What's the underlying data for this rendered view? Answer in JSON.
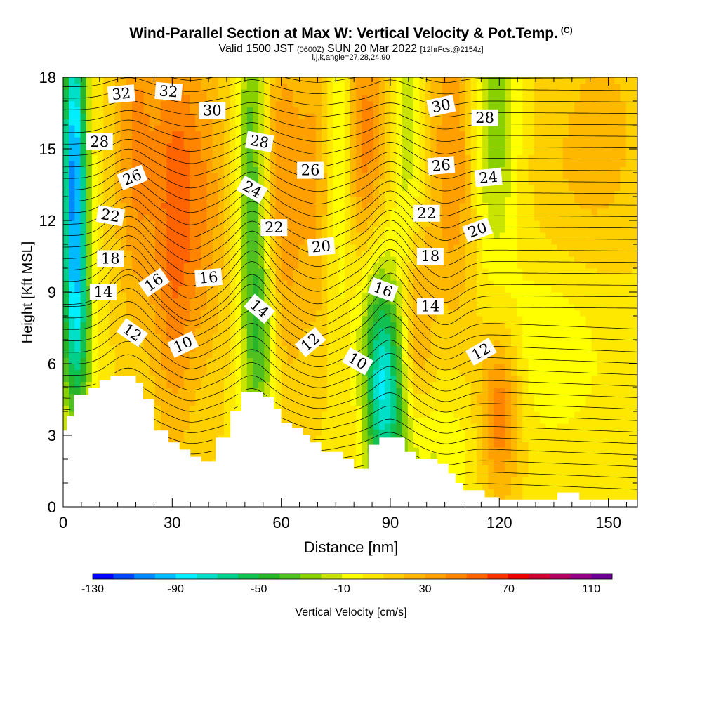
{
  "chart_data": {
    "type": "heatmap",
    "title": "Wind-Parallel Section at Max W: Vertical Velocity & Pot.Temp.",
    "title_mark": "(C)",
    "subtitle_main": "Valid 1500 JST",
    "subtitle_zulu": "(0600Z)",
    "subtitle_date": "SUN 20 Mar 2022",
    "subtitle_fcst": "[12hrFcst@2154z]",
    "subtitle2": "i,j,k,angle=27,28,24,90",
    "xlabel": "Distance [nm]",
    "ylabel": "Height [Kft MSL]",
    "xlim": [
      0,
      158
    ],
    "ylim": [
      0,
      18
    ],
    "x_ticks": [
      "0",
      "30",
      "60",
      "90",
      "120",
      "150"
    ],
    "y_ticks": [
      "0",
      "3",
      "6",
      "9",
      "12",
      "15",
      "18"
    ],
    "colorbar": {
      "label": "Vertical Velocity [cm/s]",
      "min": -130,
      "max": 120,
      "step": 10,
      "tick_labels": [
        "-130",
        "-90",
        "-50",
        "-10",
        "30",
        "70",
        "110"
      ],
      "colors": [
        "#0000ff",
        "#0044ff",
        "#0088ff",
        "#00bbff",
        "#00eeff",
        "#00e0c8",
        "#00d08c",
        "#10c050",
        "#28b428",
        "#50c020",
        "#88d000",
        "#c8e400",
        "#ffff00",
        "#ffe800",
        "#ffd000",
        "#ffb800",
        "#ffa000",
        "#ff8400",
        "#ff6400",
        "#ff3000",
        "#ee0000",
        "#d00030",
        "#b00060",
        "#900080",
        "#6a0090"
      ]
    },
    "terrain_kft": [
      [
        0,
        3.2
      ],
      [
        1,
        3.2
      ],
      [
        1,
        3.8
      ],
      [
        3,
        3.8
      ],
      [
        3,
        4.7
      ],
      [
        7,
        4.7
      ],
      [
        7,
        5.0
      ],
      [
        10,
        5.0
      ],
      [
        10,
        5.3
      ],
      [
        13,
        5.3
      ],
      [
        13,
        5.5
      ],
      [
        20,
        5.5
      ],
      [
        20,
        5.2
      ],
      [
        22,
        5.2
      ],
      [
        22,
        4.5
      ],
      [
        25,
        4.5
      ],
      [
        25,
        3.2
      ],
      [
        29,
        3.2
      ],
      [
        29,
        2.7
      ],
      [
        32,
        2.7
      ],
      [
        32,
        2.4
      ],
      [
        35,
        2.4
      ],
      [
        35,
        2.1
      ],
      [
        38,
        2.1
      ],
      [
        38,
        1.9
      ],
      [
        42,
        1.9
      ],
      [
        42,
        2.9
      ],
      [
        46,
        2.9
      ],
      [
        46,
        4.0
      ],
      [
        49,
        4.0
      ],
      [
        49,
        4.8
      ],
      [
        55,
        4.8
      ],
      [
        55,
        4.6
      ],
      [
        58,
        4.6
      ],
      [
        58,
        4.1
      ],
      [
        60,
        4.1
      ],
      [
        60,
        3.5
      ],
      [
        63,
        3.5
      ],
      [
        63,
        3.3
      ],
      [
        66,
        3.3
      ],
      [
        66,
        3.0
      ],
      [
        68,
        3.0
      ],
      [
        68,
        2.7
      ],
      [
        71,
        2.7
      ],
      [
        71,
        2.3
      ],
      [
        77,
        2.3
      ],
      [
        77,
        2.0
      ],
      [
        80,
        2.0
      ],
      [
        80,
        1.6
      ],
      [
        84,
        1.6
      ],
      [
        84,
        2.6
      ],
      [
        87,
        2.6
      ],
      [
        87,
        2.9
      ],
      [
        94,
        2.9
      ],
      [
        94,
        2.3
      ],
      [
        97,
        2.3
      ],
      [
        97,
        2.0
      ],
      [
        103,
        2.0
      ],
      [
        103,
        1.8
      ],
      [
        106,
        1.8
      ],
      [
        106,
        1.4
      ],
      [
        108,
        1.4
      ],
      [
        108,
        1.0
      ],
      [
        110,
        1.0
      ],
      [
        110,
        0.7
      ],
      [
        116,
        0.7
      ],
      [
        116,
        0.4
      ],
      [
        120,
        0.4
      ],
      [
        120,
        0.3
      ],
      [
        136,
        0.3
      ],
      [
        136,
        0.6
      ],
      [
        142,
        0.6
      ],
      [
        142,
        0.3
      ],
      [
        158,
        0.3
      ]
    ],
    "w_features": [
      {
        "x": 3,
        "z": 14,
        "sx": 2.5,
        "sz": 5,
        "w": -110
      },
      {
        "x": 4,
        "z": 7,
        "sx": 3,
        "sz": 3,
        "w": -45
      },
      {
        "x": 20,
        "z": 15,
        "sx": 4,
        "sz": 5,
        "w": 35
      },
      {
        "x": 30,
        "z": 12,
        "sx": 4,
        "sz": 6,
        "w": 40
      },
      {
        "x": 38,
        "z": 13,
        "sx": 5,
        "sz": 5,
        "w": 30
      },
      {
        "x": 52,
        "z": 14,
        "sx": 3,
        "sz": 7,
        "w": -45
      },
      {
        "x": 55,
        "z": 7,
        "sx": 3,
        "sz": 3,
        "w": -35
      },
      {
        "x": 60,
        "z": 13,
        "sx": 4,
        "sz": 6,
        "w": 30
      },
      {
        "x": 70,
        "z": 14,
        "sx": 4,
        "sz": 5,
        "w": 25
      },
      {
        "x": 76,
        "z": 15,
        "sx": 3,
        "sz": 5,
        "w": -30
      },
      {
        "x": 83,
        "z": 13,
        "sx": 4,
        "sz": 6,
        "w": 45
      },
      {
        "x": 88,
        "z": 5,
        "sx": 4,
        "sz": 3,
        "w": -85
      },
      {
        "x": 84,
        "z": 9,
        "sx": 4,
        "sz": 3,
        "w": -40
      },
      {
        "x": 97,
        "z": 8,
        "sx": 3,
        "sz": 3,
        "w": 30
      },
      {
        "x": 95,
        "z": 15,
        "sx": 3,
        "sz": 5,
        "w": -25
      },
      {
        "x": 108,
        "z": 15,
        "sx": 5,
        "sz": 5,
        "w": 35
      },
      {
        "x": 118,
        "z": 16,
        "sx": 5,
        "sz": 4,
        "w": -40
      },
      {
        "x": 120,
        "z": 4,
        "sx": 4,
        "sz": 2.5,
        "w": 45
      },
      {
        "x": 134,
        "z": 7,
        "sx": 12,
        "sz": 3,
        "w": -18
      },
      {
        "x": 138,
        "z": 13,
        "sx": 10,
        "sz": 4,
        "w": 10
      },
      {
        "x": 150,
        "z": 16,
        "sx": 8,
        "sz": 4,
        "w": 12
      },
      {
        "x": 100,
        "z": 2,
        "sx": 10,
        "sz": 2,
        "w": -20
      }
    ],
    "theta_labels": [
      {
        "text": "32",
        "x": 16,
        "z": 17.3,
        "rot": -5
      },
      {
        "text": "32",
        "x": 29,
        "z": 17.4,
        "rot": 5
      },
      {
        "text": "30",
        "x": 41,
        "z": 16.6,
        "rot": 0
      },
      {
        "text": "30",
        "x": 104,
        "z": 16.8,
        "rot": -12
      },
      {
        "text": "28",
        "x": 10,
        "z": 15.3,
        "rot": 0
      },
      {
        "text": "28",
        "x": 54,
        "z": 15.3,
        "rot": 10
      },
      {
        "text": "28",
        "x": 116,
        "z": 16.3,
        "rot": 0
      },
      {
        "text": "26",
        "x": 19,
        "z": 13.8,
        "rot": -22
      },
      {
        "text": "26",
        "x": 68,
        "z": 14.1,
        "rot": 0
      },
      {
        "text": "26",
        "x": 104,
        "z": 14.3,
        "rot": -5
      },
      {
        "text": "24",
        "x": 52,
        "z": 13.3,
        "rot": 30
      },
      {
        "text": "24",
        "x": 117,
        "z": 13.8,
        "rot": -5
      },
      {
        "text": "22",
        "x": 13,
        "z": 12.2,
        "rot": 10
      },
      {
        "text": "22",
        "x": 58,
        "z": 11.7,
        "rot": 0
      },
      {
        "text": "22",
        "x": 100,
        "z": 12.3,
        "rot": 0
      },
      {
        "text": "20",
        "x": 71,
        "z": 10.9,
        "rot": -5
      },
      {
        "text": "20",
        "x": 114,
        "z": 11.6,
        "rot": -20
      },
      {
        "text": "18",
        "x": 13,
        "z": 10.4,
        "rot": 0
      },
      {
        "text": "18",
        "x": 101,
        "z": 10.5,
        "rot": 0
      },
      {
        "text": "16",
        "x": 25,
        "z": 9.4,
        "rot": -35
      },
      {
        "text": "16",
        "x": 40,
        "z": 9.6,
        "rot": -5
      },
      {
        "text": "16",
        "x": 88,
        "z": 9.1,
        "rot": 20
      },
      {
        "text": "14",
        "x": 11,
        "z": 9.0,
        "rot": 0
      },
      {
        "text": "14",
        "x": 54,
        "z": 8.3,
        "rot": 40
      },
      {
        "text": "14",
        "x": 101,
        "z": 8.4,
        "rot": 0
      },
      {
        "text": "12",
        "x": 19,
        "z": 7.3,
        "rot": 35
      },
      {
        "text": "12",
        "x": 68,
        "z": 6.9,
        "rot": -40
      },
      {
        "text": "12",
        "x": 115,
        "z": 6.5,
        "rot": -30
      },
      {
        "text": "10",
        "x": 33,
        "z": 6.8,
        "rot": -25
      },
      {
        "text": "10",
        "x": 81,
        "z": 6.1,
        "rot": 30
      }
    ]
  }
}
